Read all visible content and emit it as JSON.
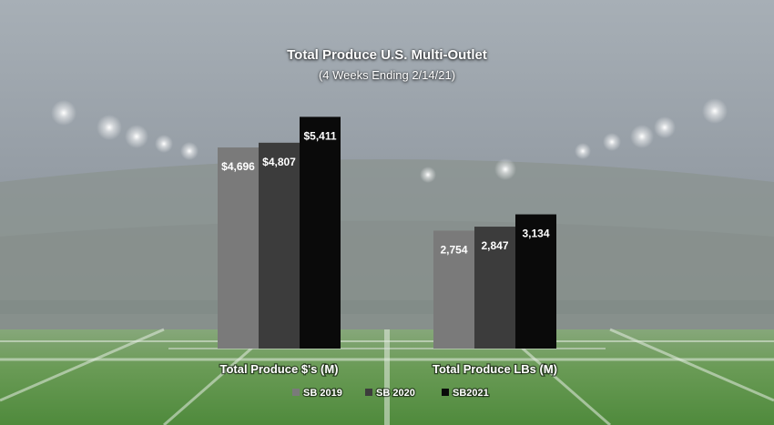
{
  "chart_data": {
    "type": "bar",
    "title": "Total Produce U.S. Multi-Outlet",
    "subtitle": "(4 Weeks Ending 2/14/21)",
    "categories": [
      "Total Produce $'s (M)",
      "Total Produce LBs (M)"
    ],
    "series": [
      {
        "name": "SB 2019",
        "color": "#7a7a7a",
        "values": [
          4696,
          2754
        ],
        "labels": [
          "$4,696",
          "2,754"
        ]
      },
      {
        "name": "SB 2020",
        "color": "#3c3c3c",
        "values": [
          4807,
          2847
        ],
        "labels": [
          "$4,807",
          "2,847"
        ]
      },
      {
        "name": "SB2021",
        "color": "#0a0a0a",
        "values": [
          5411,
          3134
        ],
        "labels": [
          "$5,411",
          "3,134"
        ]
      }
    ],
    "legend_position": "bottom",
    "grid": false
  },
  "colors": {
    "background_sky": "#9aa3ab",
    "field": "#5f9a4c"
  }
}
